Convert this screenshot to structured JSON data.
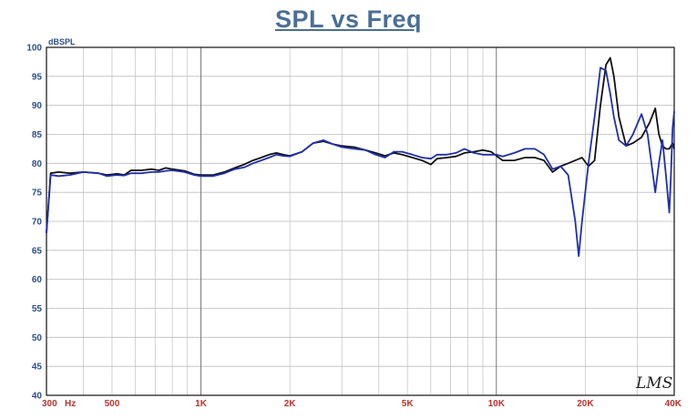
{
  "title": "SPL vs Freq",
  "watermark": "LMS",
  "chart_data": {
    "type": "line",
    "title": "SPL vs Freq",
    "ylabel": "dBSPL",
    "x_scale": "log",
    "xlim": [
      300,
      40000
    ],
    "ylim": [
      40,
      100
    ],
    "grid": true,
    "y_ticks": [
      "100",
      "95",
      "90",
      "85",
      "80",
      "75",
      "70",
      "65",
      "60",
      "55",
      "50",
      "45",
      "40"
    ],
    "x_tick_labels": [
      {
        "value": 300,
        "label": "300"
      },
      {
        "value": 500,
        "label": "500"
      },
      {
        "value": 1000,
        "label": "1K"
      },
      {
        "value": 2000,
        "label": "2K"
      },
      {
        "value": 5000,
        "label": "5K"
      },
      {
        "value": 10000,
        "label": "10K"
      },
      {
        "value": 20000,
        "label": "20K"
      },
      {
        "value": 40000,
        "label": "40K"
      }
    ],
    "x_unit_label": "Hz",
    "series": [
      {
        "color": "#111111",
        "points": [
          [
            300,
            68
          ],
          [
            310,
            78.3
          ],
          [
            330,
            78.5
          ],
          [
            360,
            78.3
          ],
          [
            400,
            78.5
          ],
          [
            450,
            78.3
          ],
          [
            480,
            78
          ],
          [
            520,
            78.2
          ],
          [
            550,
            78
          ],
          [
            580,
            78.8
          ],
          [
            630,
            78.8
          ],
          [
            680,
            79
          ],
          [
            720,
            78.8
          ],
          [
            760,
            79.2
          ],
          [
            800,
            79
          ],
          [
            880,
            78.7
          ],
          [
            950,
            78.1
          ],
          [
            1000,
            78
          ],
          [
            1100,
            78
          ],
          [
            1200,
            78.5
          ],
          [
            1300,
            79.2
          ],
          [
            1400,
            79.8
          ],
          [
            1500,
            80.5
          ],
          [
            1600,
            81
          ],
          [
            1700,
            81.5
          ],
          [
            1800,
            81.8
          ],
          [
            1900,
            81.5
          ],
          [
            2000,
            81.3
          ],
          [
            2200,
            82
          ],
          [
            2400,
            83.5
          ],
          [
            2600,
            83.8
          ],
          [
            2800,
            83.3
          ],
          [
            3000,
            83
          ],
          [
            3300,
            82.8
          ],
          [
            3600,
            82.3
          ],
          [
            3900,
            81.8
          ],
          [
            4200,
            81.3
          ],
          [
            4500,
            81.8
          ],
          [
            4800,
            81.5
          ],
          [
            5200,
            81
          ],
          [
            5600,
            80.5
          ],
          [
            6000,
            79.8
          ],
          [
            6300,
            80.8
          ],
          [
            6800,
            81
          ],
          [
            7300,
            81.2
          ],
          [
            7800,
            81.8
          ],
          [
            8400,
            82
          ],
          [
            9000,
            82.3
          ],
          [
            9600,
            82
          ],
          [
            10000,
            81.3
          ],
          [
            10500,
            80.5
          ],
          [
            11500,
            80.5
          ],
          [
            12500,
            81
          ],
          [
            13500,
            81
          ],
          [
            14500,
            80.5
          ],
          [
            15500,
            78.5
          ],
          [
            16500,
            79.5
          ],
          [
            17500,
            80
          ],
          [
            18500,
            80.5
          ],
          [
            19500,
            81
          ],
          [
            20500,
            79.5
          ],
          [
            21500,
            80.5
          ],
          [
            22500,
            90
          ],
          [
            23500,
            97
          ],
          [
            24300,
            98.2
          ],
          [
            25000,
            95
          ],
          [
            26000,
            88
          ],
          [
            27500,
            83
          ],
          [
            29000,
            83.5
          ],
          [
            31000,
            84.5
          ],
          [
            33000,
            87
          ],
          [
            34500,
            89.5
          ],
          [
            35500,
            85
          ],
          [
            36500,
            83
          ],
          [
            37500,
            82.5
          ],
          [
            38500,
            82.5
          ],
          [
            39500,
            83.5
          ],
          [
            40000,
            82.5
          ]
        ]
      },
      {
        "color": "#1f2faf",
        "points": [
          [
            300,
            68
          ],
          [
            310,
            78
          ],
          [
            330,
            77.8
          ],
          [
            360,
            78
          ],
          [
            400,
            78.5
          ],
          [
            450,
            78.3
          ],
          [
            480,
            77.8
          ],
          [
            520,
            78
          ],
          [
            550,
            77.9
          ],
          [
            580,
            78.3
          ],
          [
            630,
            78.3
          ],
          [
            680,
            78.5
          ],
          [
            720,
            78.5
          ],
          [
            760,
            78.7
          ],
          [
            800,
            78.8
          ],
          [
            880,
            78.5
          ],
          [
            950,
            78
          ],
          [
            1000,
            77.8
          ],
          [
            1100,
            77.8
          ],
          [
            1200,
            78.3
          ],
          [
            1300,
            79
          ],
          [
            1400,
            79.3
          ],
          [
            1500,
            80
          ],
          [
            1600,
            80.5
          ],
          [
            1700,
            81
          ],
          [
            1800,
            81.5
          ],
          [
            1900,
            81.3
          ],
          [
            2000,
            81.2
          ],
          [
            2200,
            82
          ],
          [
            2400,
            83.5
          ],
          [
            2600,
            84
          ],
          [
            2800,
            83.3
          ],
          [
            3000,
            82.8
          ],
          [
            3300,
            82.5
          ],
          [
            3600,
            82.3
          ],
          [
            3900,
            81.5
          ],
          [
            4200,
            81
          ],
          [
            4500,
            82
          ],
          [
            4800,
            82
          ],
          [
            5200,
            81.5
          ],
          [
            5600,
            81
          ],
          [
            6000,
            80.8
          ],
          [
            6300,
            81.5
          ],
          [
            6800,
            81.5
          ],
          [
            7300,
            81.8
          ],
          [
            7800,
            82.5
          ],
          [
            8400,
            81.8
          ],
          [
            9000,
            81.5
          ],
          [
            9600,
            81.5
          ],
          [
            10000,
            81.5
          ],
          [
            10500,
            81.2
          ],
          [
            11500,
            81.8
          ],
          [
            12500,
            82.5
          ],
          [
            13500,
            82.5
          ],
          [
            14500,
            81.5
          ],
          [
            15500,
            79
          ],
          [
            16500,
            79.5
          ],
          [
            17500,
            78
          ],
          [
            18500,
            70
          ],
          [
            19000,
            64
          ],
          [
            19500,
            70
          ],
          [
            20500,
            80
          ],
          [
            21500,
            88
          ],
          [
            22500,
            96.5
          ],
          [
            23500,
            96
          ],
          [
            24300,
            92
          ],
          [
            25000,
            88
          ],
          [
            26000,
            84
          ],
          [
            27500,
            83
          ],
          [
            29000,
            85
          ],
          [
            31000,
            88.5
          ],
          [
            32500,
            85
          ],
          [
            33500,
            80
          ],
          [
            34500,
            75
          ],
          [
            35500,
            80
          ],
          [
            36500,
            84
          ],
          [
            37500,
            78
          ],
          [
            38500,
            71.5
          ],
          [
            39000,
            78
          ],
          [
            39500,
            86
          ],
          [
            40000,
            89
          ]
        ]
      }
    ]
  }
}
